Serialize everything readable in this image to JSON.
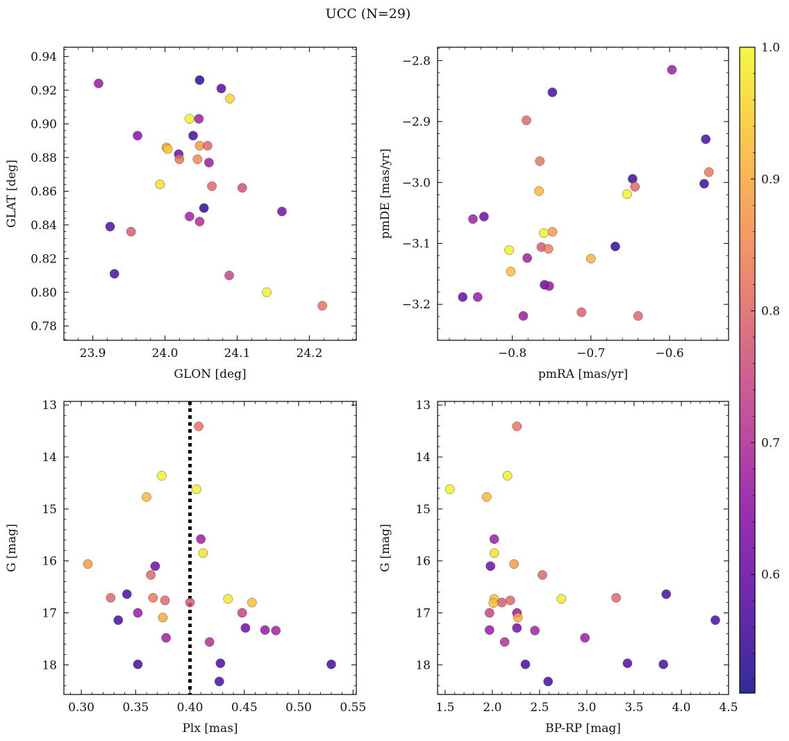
{
  "figure": {
    "title": "UCC (N=29)"
  },
  "colorbar": {
    "min": 0.51,
    "max": 1.0,
    "ticks": [
      {
        "value": 0.6,
        "label": "0.6"
      },
      {
        "value": 0.7,
        "label": "0.7"
      },
      {
        "value": 0.8,
        "label": "0.8"
      },
      {
        "value": 0.9,
        "label": "0.9"
      },
      {
        "value": 1.0,
        "label": "1.0"
      }
    ],
    "colormap": "plasma"
  },
  "chart_data": [
    {
      "type": "scatter",
      "xlabel": "GLON [deg]",
      "ylabel": "GLAT [deg]",
      "xlim": [
        23.86,
        24.265
      ],
      "ylim": [
        0.7715,
        0.9455
      ],
      "y_inverted": false,
      "grid": false,
      "xticks": [
        {
          "value": 23.9,
          "label": "23.9"
        },
        {
          "value": 24.0,
          "label": "24.0"
        },
        {
          "value": 24.1,
          "label": "24.1"
        },
        {
          "value": 24.2,
          "label": "24.2"
        }
      ],
      "yticks": [
        {
          "value": 0.78,
          "label": "0.78"
        },
        {
          "value": 0.8,
          "label": "0.80"
        },
        {
          "value": 0.82,
          "label": "0.82"
        },
        {
          "value": 0.84,
          "label": "0.84"
        },
        {
          "value": 0.86,
          "label": "0.86"
        },
        {
          "value": 0.88,
          "label": "0.88"
        },
        {
          "value": 0.9,
          "label": "0.90"
        },
        {
          "value": 0.92,
          "label": "0.92"
        },
        {
          "value": 0.94,
          "label": "0.94"
        }
      ],
      "points": [
        {
          "x": 23.908,
          "y": 0.924,
          "c": 0.66
        },
        {
          "x": 24.048,
          "y": 0.926,
          "c": 0.53
        },
        {
          "x": 24.078,
          "y": 0.921,
          "c": 0.58
        },
        {
          "x": 24.09,
          "y": 0.915,
          "c": 0.96
        },
        {
          "x": 24.034,
          "y": 0.903,
          "c": 0.99
        },
        {
          "x": 24.047,
          "y": 0.903,
          "c": 0.67
        },
        {
          "x": 23.962,
          "y": 0.893,
          "c": 0.63
        },
        {
          "x": 24.039,
          "y": 0.893,
          "c": 0.56
        },
        {
          "x": 24.002,
          "y": 0.886,
          "c": 0.9
        },
        {
          "x": 24.004,
          "y": 0.885,
          "c": 0.95
        },
        {
          "x": 24.048,
          "y": 0.887,
          "c": 0.88
        },
        {
          "x": 24.059,
          "y": 0.887,
          "c": 0.8
        },
        {
          "x": 24.019,
          "y": 0.882,
          "c": 0.6
        },
        {
          "x": 24.02,
          "y": 0.879,
          "c": 0.82
        },
        {
          "x": 24.045,
          "y": 0.879,
          "c": 0.86
        },
        {
          "x": 24.061,
          "y": 0.877,
          "c": 0.66
        },
        {
          "x": 23.993,
          "y": 0.864,
          "c": 0.97
        },
        {
          "x": 24.065,
          "y": 0.863,
          "c": 0.8
        },
        {
          "x": 24.107,
          "y": 0.862,
          "c": 0.76
        },
        {
          "x": 24.054,
          "y": 0.85,
          "c": 0.54
        },
        {
          "x": 24.162,
          "y": 0.848,
          "c": 0.62
        },
        {
          "x": 24.034,
          "y": 0.845,
          "c": 0.68
        },
        {
          "x": 24.048,
          "y": 0.842,
          "c": 0.7
        },
        {
          "x": 23.924,
          "y": 0.839,
          "c": 0.57
        },
        {
          "x": 23.953,
          "y": 0.836,
          "c": 0.78
        },
        {
          "x": 23.93,
          "y": 0.811,
          "c": 0.57
        },
        {
          "x": 24.089,
          "y": 0.81,
          "c": 0.74
        },
        {
          "x": 24.141,
          "y": 0.8,
          "c": 0.99
        },
        {
          "x": 24.218,
          "y": 0.792,
          "c": 0.82
        }
      ]
    },
    {
      "type": "scatter",
      "xlabel": "pmRA [mas/yr]",
      "ylabel": "pmDE [mas/yr]",
      "xlim": [
        -0.895,
        -0.525
      ],
      "ylim": [
        -3.259,
        -2.778
      ],
      "y_inverted": false,
      "grid": false,
      "xticks": [
        {
          "value": -0.8,
          "label": "−0.8"
        },
        {
          "value": -0.7,
          "label": "−0.7"
        },
        {
          "value": -0.6,
          "label": "−0.6"
        }
      ],
      "yticks": [
        {
          "value": -3.2,
          "label": "−3.2"
        },
        {
          "value": -3.1,
          "label": "−3.1"
        },
        {
          "value": -3.0,
          "label": "−3.0"
        },
        {
          "value": -2.9,
          "label": "−2.9"
        },
        {
          "value": -2.8,
          "label": "−2.8"
        }
      ],
      "points": [
        {
          "x": -0.597,
          "y": -2.815,
          "c": 0.67
        },
        {
          "x": -0.749,
          "y": -2.852,
          "c": 0.56
        },
        {
          "x": -0.782,
          "y": -2.898,
          "c": 0.8
        },
        {
          "x": -0.554,
          "y": -2.929,
          "c": 0.56
        },
        {
          "x": -0.765,
          "y": -2.965,
          "c": 0.82
        },
        {
          "x": -0.55,
          "y": -2.983,
          "c": 0.83
        },
        {
          "x": -0.647,
          "y": -2.994,
          "c": 0.55
        },
        {
          "x": -0.556,
          "y": -3.002,
          "c": 0.55
        },
        {
          "x": -0.644,
          "y": -3.007,
          "c": 0.8
        },
        {
          "x": -0.766,
          "y": -3.014,
          "c": 0.92
        },
        {
          "x": -0.654,
          "y": -3.019,
          "c": 0.99
        },
        {
          "x": -0.836,
          "y": -3.056,
          "c": 0.6
        },
        {
          "x": -0.85,
          "y": -3.06,
          "c": 0.67
        },
        {
          "x": -0.749,
          "y": -3.081,
          "c": 0.88
        },
        {
          "x": -0.76,
          "y": -3.083,
          "c": 0.99
        },
        {
          "x": -0.669,
          "y": -3.105,
          "c": 0.54
        },
        {
          "x": -0.763,
          "y": -3.106,
          "c": 0.78
        },
        {
          "x": -0.754,
          "y": -3.109,
          "c": 0.84
        },
        {
          "x": -0.804,
          "y": -3.111,
          "c": 0.99
        },
        {
          "x": -0.781,
          "y": -3.124,
          "c": 0.67
        },
        {
          "x": -0.7,
          "y": -3.125,
          "c": 0.91
        },
        {
          "x": -0.802,
          "y": -3.146,
          "c": 0.93
        },
        {
          "x": -0.759,
          "y": -3.168,
          "c": 0.59
        },
        {
          "x": -0.753,
          "y": -3.17,
          "c": 0.66
        },
        {
          "x": -0.863,
          "y": -3.188,
          "c": 0.59
        },
        {
          "x": -0.844,
          "y": -3.188,
          "c": 0.66
        },
        {
          "x": -0.712,
          "y": -3.213,
          "c": 0.79
        },
        {
          "x": -0.786,
          "y": -3.219,
          "c": 0.67
        },
        {
          "x": -0.64,
          "y": -3.219,
          "c": 0.8
        }
      ]
    },
    {
      "type": "scatter",
      "xlabel": "Plx [mas]",
      "ylabel": "G [mag]",
      "xlim": [
        0.284,
        0.553
      ],
      "ylim": [
        18.57,
        12.93
      ],
      "y_inverted": true,
      "grid": false,
      "vline": {
        "x": 0.4,
        "style": "dotted",
        "color": "#000000"
      },
      "xticks": [
        {
          "value": 0.3,
          "label": "0.30"
        },
        {
          "value": 0.35,
          "label": "0.35"
        },
        {
          "value": 0.4,
          "label": "0.40"
        },
        {
          "value": 0.45,
          "label": "0.45"
        },
        {
          "value": 0.5,
          "label": "0.50"
        },
        {
          "value": 0.55,
          "label": "0.55"
        }
      ],
      "yticks": [
        {
          "value": 13,
          "label": "13"
        },
        {
          "value": 14,
          "label": "14"
        },
        {
          "value": 15,
          "label": "15"
        },
        {
          "value": 16,
          "label": "16"
        },
        {
          "value": 17,
          "label": "17"
        },
        {
          "value": 18,
          "label": "18"
        }
      ],
      "points": [
        {
          "x": 0.408,
          "y": 13.41,
          "c": 0.82
        },
        {
          "x": 0.374,
          "y": 14.36,
          "c": 0.99
        },
        {
          "x": 0.406,
          "y": 14.62,
          "c": 0.99
        },
        {
          "x": 0.36,
          "y": 14.77,
          "c": 0.92
        },
        {
          "x": 0.41,
          "y": 15.58,
          "c": 0.67
        },
        {
          "x": 0.412,
          "y": 15.85,
          "c": 0.97
        },
        {
          "x": 0.306,
          "y": 16.06,
          "c": 0.88
        },
        {
          "x": 0.368,
          "y": 16.1,
          "c": 0.6
        },
        {
          "x": 0.364,
          "y": 16.27,
          "c": 0.8
        },
        {
          "x": 0.342,
          "y": 16.64,
          "c": 0.56
        },
        {
          "x": 0.327,
          "y": 16.71,
          "c": 0.8
        },
        {
          "x": 0.366,
          "y": 16.71,
          "c": 0.83
        },
        {
          "x": 0.435,
          "y": 16.73,
          "c": 0.98
        },
        {
          "x": 0.377,
          "y": 16.76,
          "c": 0.8
        },
        {
          "x": 0.4,
          "y": 16.8,
          "c": 0.78
        },
        {
          "x": 0.457,
          "y": 16.8,
          "c": 0.93
        },
        {
          "x": 0.352,
          "y": 17.0,
          "c": 0.66
        },
        {
          "x": 0.448,
          "y": 17.0,
          "c": 0.74
        },
        {
          "x": 0.375,
          "y": 17.09,
          "c": 0.9
        },
        {
          "x": 0.334,
          "y": 17.14,
          "c": 0.56
        },
        {
          "x": 0.451,
          "y": 17.29,
          "c": 0.61
        },
        {
          "x": 0.469,
          "y": 17.33,
          "c": 0.66
        },
        {
          "x": 0.479,
          "y": 17.34,
          "c": 0.68
        },
        {
          "x": 0.378,
          "y": 17.48,
          "c": 0.67
        },
        {
          "x": 0.418,
          "y": 17.56,
          "c": 0.7
        },
        {
          "x": 0.428,
          "y": 17.97,
          "c": 0.57
        },
        {
          "x": 0.352,
          "y": 17.99,
          "c": 0.56
        },
        {
          "x": 0.53,
          "y": 17.99,
          "c": 0.56
        },
        {
          "x": 0.427,
          "y": 18.32,
          "c": 0.56
        }
      ]
    },
    {
      "type": "scatter",
      "xlabel": "BP-RP [mag]",
      "ylabel": "G [mag]",
      "xlim": [
        1.42,
        4.5
      ],
      "ylim": [
        18.57,
        12.93
      ],
      "y_inverted": true,
      "grid": false,
      "xticks": [
        {
          "value": 1.5,
          "label": "1.5"
        },
        {
          "value": 2.0,
          "label": "2.0"
        },
        {
          "value": 2.5,
          "label": "2.5"
        },
        {
          "value": 3.0,
          "label": "3.0"
        },
        {
          "value": 3.5,
          "label": "3.5"
        },
        {
          "value": 4.0,
          "label": "4.0"
        },
        {
          "value": 4.5,
          "label": "4.5"
        }
      ],
      "yticks": [
        {
          "value": 13,
          "label": "13"
        },
        {
          "value": 14,
          "label": "14"
        },
        {
          "value": 15,
          "label": "15"
        },
        {
          "value": 16,
          "label": "16"
        },
        {
          "value": 17,
          "label": "17"
        },
        {
          "value": 18,
          "label": "18"
        }
      ],
      "points": [
        {
          "x": 2.26,
          "y": 13.41,
          "c": 0.82
        },
        {
          "x": 2.16,
          "y": 14.36,
          "c": 0.99
        },
        {
          "x": 1.55,
          "y": 14.62,
          "c": 0.99
        },
        {
          "x": 1.94,
          "y": 14.77,
          "c": 0.92
        },
        {
          "x": 2.02,
          "y": 15.58,
          "c": 0.67
        },
        {
          "x": 2.02,
          "y": 15.85,
          "c": 0.97
        },
        {
          "x": 2.23,
          "y": 16.06,
          "c": 0.88
        },
        {
          "x": 1.98,
          "y": 16.1,
          "c": 0.6
        },
        {
          "x": 2.53,
          "y": 16.27,
          "c": 0.8
        },
        {
          "x": 3.84,
          "y": 16.64,
          "c": 0.56
        },
        {
          "x": 3.31,
          "y": 16.71,
          "c": 0.8
        },
        {
          "x": 2.02,
          "y": 16.73,
          "c": 0.93
        },
        {
          "x": 2.73,
          "y": 16.73,
          "c": 0.98
        },
        {
          "x": 2.19,
          "y": 16.76,
          "c": 0.8
        },
        {
          "x": 2.1,
          "y": 16.8,
          "c": 0.78
        },
        {
          "x": 2.01,
          "y": 16.81,
          "c": 0.93
        },
        {
          "x": 1.97,
          "y": 17.0,
          "c": 0.74
        },
        {
          "x": 2.26,
          "y": 17.0,
          "c": 0.66
        },
        {
          "x": 2.27,
          "y": 17.09,
          "c": 0.9
        },
        {
          "x": 4.36,
          "y": 17.14,
          "c": 0.56
        },
        {
          "x": 2.26,
          "y": 17.29,
          "c": 0.61
        },
        {
          "x": 1.97,
          "y": 17.33,
          "c": 0.66
        },
        {
          "x": 2.45,
          "y": 17.34,
          "c": 0.68
        },
        {
          "x": 2.98,
          "y": 17.48,
          "c": 0.67
        },
        {
          "x": 2.13,
          "y": 17.56,
          "c": 0.7
        },
        {
          "x": 3.43,
          "y": 17.97,
          "c": 0.57
        },
        {
          "x": 2.35,
          "y": 17.99,
          "c": 0.56
        },
        {
          "x": 3.81,
          "y": 17.99,
          "c": 0.56
        },
        {
          "x": 2.59,
          "y": 18.32,
          "c": 0.56
        }
      ]
    }
  ]
}
